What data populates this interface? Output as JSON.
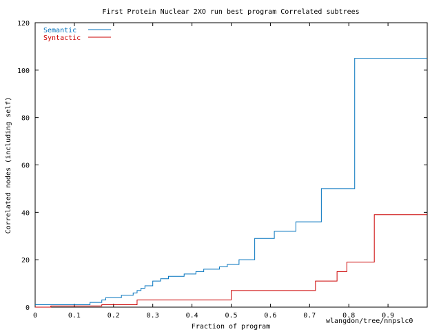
{
  "chart_data": {
    "type": "line",
    "step": true,
    "title": "First Protein Nuclear 2XO run best program Correlated subtrees",
    "xlabel": "Fraction of program",
    "ylabel": "Correlated nodes (including self)",
    "corner_label": "wlangdon/tree/nnpslc0",
    "xlim": [
      0,
      1
    ],
    "ylim": [
      0,
      120
    ],
    "x_ticks": [
      0,
      0.1,
      0.2,
      0.3,
      0.4,
      0.5,
      0.6,
      0.7,
      0.8,
      0.9,
      1
    ],
    "x_tick_labels": [
      "0",
      "0.1",
      "0.2",
      "0.3",
      "0.4",
      "0.5",
      "0.6",
      "0.7",
      "0.8",
      "0.9",
      ""
    ],
    "y_ticks": [
      0,
      20,
      40,
      60,
      80,
      100,
      120
    ],
    "y_tick_labels": [
      "0",
      "20",
      "40",
      "60",
      "80",
      "100",
      "120"
    ],
    "grid": false,
    "legend_position": "top-left",
    "series": [
      {
        "name": "Semantic",
        "color": "#0072bd",
        "x": [
          0.0,
          0.14,
          0.17,
          0.18,
          0.2,
          0.22,
          0.24,
          0.25,
          0.26,
          0.27,
          0.28,
          0.3,
          0.32,
          0.34,
          0.36,
          0.38,
          0.4,
          0.41,
          0.43,
          0.45,
          0.47,
          0.49,
          0.52,
          0.56,
          0.61,
          0.665,
          0.73,
          0.815,
          1.0
        ],
        "y": [
          1,
          2,
          3,
          4,
          4,
          5,
          5,
          6,
          7,
          8,
          9,
          11,
          12,
          13,
          13,
          14,
          14,
          15,
          16,
          16,
          17,
          18,
          20,
          29,
          32,
          36,
          50,
          105,
          105
        ]
      },
      {
        "name": "Syntactic",
        "color": "#cc0000",
        "x": [
          0.0,
          0.04,
          0.12,
          0.17,
          0.26,
          0.5,
          0.715,
          0.77,
          0.795,
          0.865,
          1.0
        ],
        "y": [
          0,
          0.5,
          0.5,
          1,
          3,
          7,
          11,
          15,
          19,
          39,
          39
        ]
      }
    ]
  }
}
